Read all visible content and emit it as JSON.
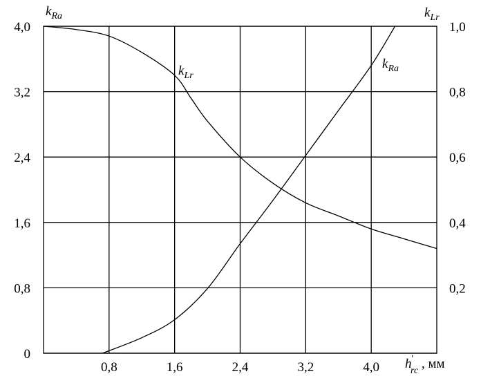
{
  "chart_data": {
    "type": "line",
    "y_title": {
      "main": "k",
      "sub": "Ra"
    },
    "y2_title": {
      "main": "k",
      "sub": "Lr"
    },
    "x_title": {
      "main": "h",
      "sup": "'",
      "sub": "rc",
      "rest": " , мм"
    },
    "xlim": [
      0,
      4.8
    ],
    "xticks": [
      {
        "value": 0.8,
        "label": "0,8"
      },
      {
        "value": 1.6,
        "label": "1,6"
      },
      {
        "value": 2.4,
        "label": "2,4"
      },
      {
        "value": 3.2,
        "label": "3,2"
      },
      {
        "value": 4.0,
        "label": "4,0"
      }
    ],
    "ylim": [
      0,
      4
    ],
    "yticks": [
      0,
      {
        "value": 0.8,
        "label": "0,8"
      },
      {
        "value": 1.6,
        "label": "1,6"
      },
      {
        "value": 2.4,
        "label": "2,4"
      },
      {
        "value": 3.2,
        "label": "3,2"
      },
      {
        "value": 4.0,
        "label": "4,0"
      }
    ],
    "y2lim": [
      0,
      1
    ],
    "y2ticks": [
      {
        "value": 0.2,
        "label": "0,2"
      },
      {
        "value": 0.4,
        "label": "0,4"
      },
      {
        "value": 0.6,
        "label": "0,6"
      },
      {
        "value": 0.8,
        "label": "0,8"
      },
      {
        "value": 1.0,
        "label": "1,0"
      }
    ],
    "grid": true,
    "series": [
      {
        "label": {
          "main": "k",
          "sub": "Lr"
        },
        "axis": "y2",
        "color": "#000000",
        "x": [
          0,
          0.4,
          0.8,
          1.2,
          1.6,
          1.8,
          2.0,
          2.4,
          2.8,
          3.2,
          3.6,
          4.0,
          4.4,
          4.8
        ],
        "values": [
          1.0,
          0.99,
          0.97,
          0.92,
          0.85,
          0.78,
          0.71,
          0.6,
          0.52,
          0.46,
          0.42,
          0.38,
          0.35,
          0.32
        ]
      },
      {
        "label": {
          "main": "k",
          "sub": "Ra"
        },
        "color": "#000000",
        "x": [
          0.72,
          1.2,
          1.6,
          2.0,
          2.4,
          2.8,
          3.2,
          3.6,
          4.0,
          4.29
        ],
        "values": [
          0,
          0.19,
          0.41,
          0.79,
          1.34,
          1.87,
          2.42,
          2.97,
          3.52,
          4.0
        ]
      }
    ]
  }
}
